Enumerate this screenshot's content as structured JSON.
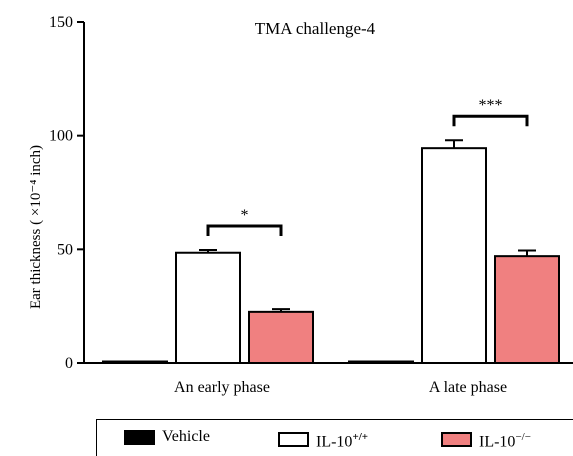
{
  "chart_data": {
    "type": "bar",
    "title": "TMA challenge-4",
    "ylabel": "Ear thickness ( ×10⁻⁴ inch)",
    "xlabel": "",
    "ylim": [
      0,
      150
    ],
    "yticks": [
      "0",
      "50",
      "100",
      "150"
    ],
    "categories": [
      "An early phase",
      "A late phase"
    ],
    "series": [
      {
        "name": "Vehicle",
        "values": [
          0,
          0
        ],
        "errors": [
          0,
          0
        ],
        "color": "#000000"
      },
      {
        "name": "IL-10+/+",
        "values": [
          48.5,
          94.5
        ],
        "errors": [
          1.2,
          3.5
        ],
        "color": "#ffffff"
      },
      {
        "name": "IL-10−/−",
        "values": [
          22.5,
          47
        ],
        "errors": [
          1.2,
          2.5
        ],
        "color": "#f08080"
      }
    ],
    "annotations": [
      {
        "category": "An early phase",
        "label": "*"
      },
      {
        "category": "A late phase",
        "label": "***"
      }
    ],
    "legend": {
      "placement": "bottom",
      "items": [
        {
          "base": "Vehicle",
          "sup": ""
        },
        {
          "base": "IL-10",
          "sup": "+/+"
        },
        {
          "base": "IL-10",
          "sup": "−/−"
        }
      ]
    },
    "grid": false
  }
}
